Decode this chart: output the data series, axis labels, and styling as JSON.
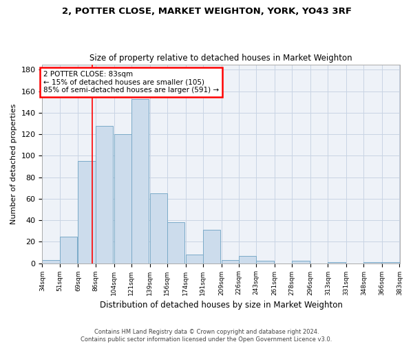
{
  "title": "2, POTTER CLOSE, MARKET WEIGHTON, YORK, YO43 3RF",
  "subtitle": "Size of property relative to detached houses in Market Weighton",
  "xlabel": "Distribution of detached houses by size in Market Weighton",
  "ylabel": "Number of detached properties",
  "bar_color": "#ccdcec",
  "bar_edge_color": "#7aaac8",
  "grid_color": "#c8d4e4",
  "background_color": "#eef2f8",
  "property_line_x": 83,
  "property_line_color": "red",
  "annotation_text": "2 POTTER CLOSE: 83sqm\n← 15% of detached houses are smaller (105)\n85% of semi-detached houses are larger (591) →",
  "footer1": "Contains HM Land Registry data © Crown copyright and database right 2024.",
  "footer2": "Contains public sector information licensed under the Open Government Licence v3.0.",
  "bins_left": [
    34,
    51,
    69,
    86,
    104,
    121,
    139,
    156,
    174,
    191,
    209,
    226,
    243,
    261,
    278,
    296,
    313,
    331,
    348,
    366
  ],
  "bin_width": 17,
  "bar_heights": [
    3,
    25,
    95,
    128,
    120,
    153,
    65,
    38,
    8,
    31,
    3,
    7,
    2,
    0,
    2,
    0,
    1,
    0,
    1,
    1
  ],
  "ylim": [
    0,
    185
  ],
  "yticks": [
    0,
    20,
    40,
    60,
    80,
    100,
    120,
    140,
    160,
    180
  ],
  "xtick_labels": [
    "34sqm",
    "51sqm",
    "69sqm",
    "86sqm",
    "104sqm",
    "121sqm",
    "139sqm",
    "156sqm",
    "174sqm",
    "191sqm",
    "209sqm",
    "226sqm",
    "243sqm",
    "261sqm",
    "278sqm",
    "296sqm",
    "313sqm",
    "331sqm",
    "348sqm",
    "366sqm",
    "383sqm"
  ]
}
